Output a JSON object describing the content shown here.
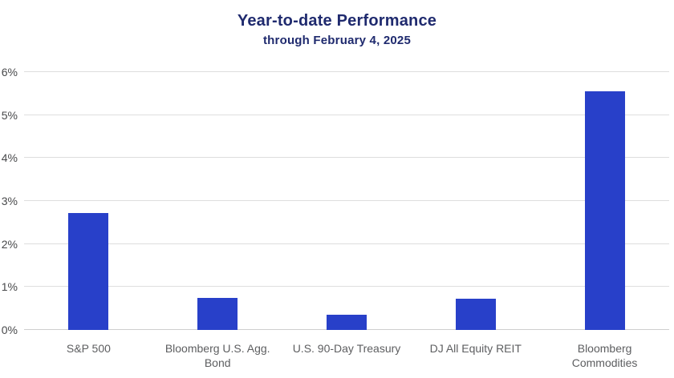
{
  "chart_data": {
    "type": "bar",
    "title": "Year-to-date Performance",
    "subtitle": "through February 4, 2025",
    "categories": [
      "S&P 500",
      "Bloomberg U.S. Agg. Bond",
      "U.S. 90-Day Treasury",
      "DJ All Equity REIT",
      "Bloomberg Commodities"
    ],
    "category_lines": [
      [
        "S&P 500"
      ],
      [
        "Bloomberg U.S. Agg.",
        "Bond"
      ],
      [
        "U.S. 90-Day Treasury"
      ],
      [
        "DJ All Equity REIT"
      ],
      [
        "Bloomberg",
        "Commodities"
      ]
    ],
    "values": [
      2.73,
      0.74,
      0.36,
      0.72,
      5.55
    ],
    "unit": "%",
    "ylim": [
      0,
      6
    ],
    "y_ticks": [
      {
        "label": "0%",
        "value": 0
      },
      {
        "label": "1%",
        "value": 1
      },
      {
        "label": "2%",
        "value": 2
      },
      {
        "label": "3%",
        "value": 3
      },
      {
        "label": "4%",
        "value": 4
      },
      {
        "label": "5%",
        "value": 5
      },
      {
        "label": "6%",
        "value": 6
      }
    ],
    "grid": true,
    "legend": false,
    "colors": {
      "bar": "#2840c9",
      "title": "#1f2a6e",
      "y_tick_text": "#48494b",
      "x_tick_text": "#5d5e60",
      "gridline": "#dedede",
      "baseline": "#cfcfcf",
      "background": "#ffffff"
    }
  }
}
